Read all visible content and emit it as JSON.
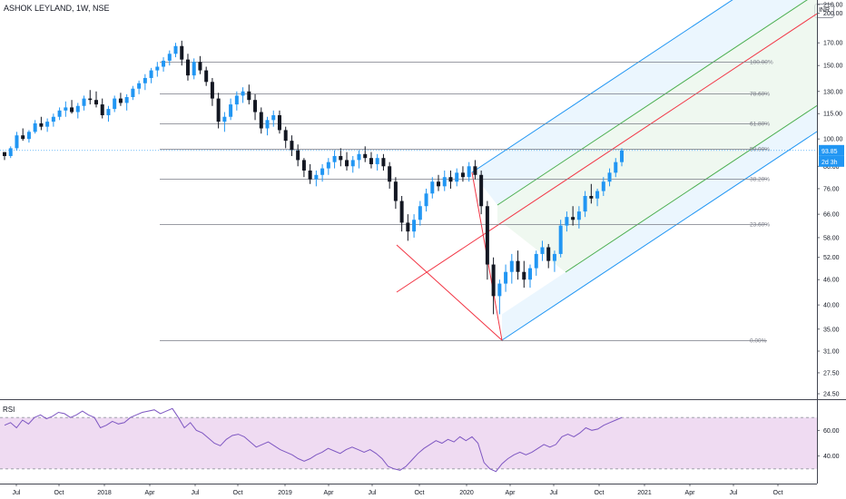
{
  "header": {
    "title": "ASHOK LEYLAND, 1W, NSE"
  },
  "currency": "INR",
  "rsi": {
    "label": "RSI",
    "levels": [
      "60.00",
      "40.00"
    ]
  },
  "price_axis": {
    "ticks": [
      "210.00",
      "200.00",
      "170.00",
      "150.00",
      "130.00",
      "115.00",
      "100.00",
      "86.00",
      "76.00",
      "66.00",
      "58.00",
      "52.00",
      "46.00",
      "40.00",
      "35.00",
      "31.00",
      "27.50",
      "24.50"
    ],
    "current_price": "93.85",
    "countdown": "2d 3h"
  },
  "time_axis": {
    "labels": [
      "Jul",
      "Oct",
      "2018",
      "Apr",
      "Jul",
      "Oct",
      "2019",
      "Apr",
      "Jul",
      "Oct",
      "2020",
      "Apr",
      "Jul",
      "Oct",
      "2021",
      "Apr",
      "Jul",
      "Oct"
    ]
  },
  "fibonacci": {
    "levels": [
      "100.00%",
      "78.60%",
      "61.80%",
      "50.00%",
      "38.20%",
      "23.60%",
      "0.00%"
    ]
  },
  "colors": {
    "up": "#2196f3",
    "down": "#131722",
    "fib_line": "#787b86",
    "pitch_upper": "#2196f3",
    "pitch_mid": "#4caf50",
    "pitch_median": "#f23645",
    "rsi_line": "#7e57c2",
    "rsi_band": "#e1bee7",
    "current_price": "#2196f3"
  },
  "chart_data": [
    {
      "type": "candlestick",
      "title": "ASHOK LEYLAND, 1W, NSE",
      "xlabel": "",
      "ylabel": "",
      "x_range": [
        "2017-06",
        "2021-12"
      ],
      "y_scale": "log",
      "ylim": [
        24.5,
        210
      ],
      "last_price": 93.85,
      "series": [
        {
          "values": [
            [
              93,
              93,
              89,
              91
            ],
            [
              91,
              96,
              90,
              95
            ],
            [
              95,
              104,
              94,
              102
            ],
            [
              102,
              106,
              99,
              100
            ],
            [
              100,
              105,
              98,
              104
            ],
            [
              104,
              111,
              103,
              109
            ],
            [
              109,
              113,
              105,
              107
            ],
            [
              107,
              112,
              104,
              110
            ],
            [
              110,
              115,
              107,
              113
            ],
            [
              113,
              119,
              111,
              117
            ],
            [
              117,
              123,
              113,
              119
            ],
            [
              119,
              124,
              115,
              116
            ],
            [
              116,
              122,
              112,
              120
            ],
            [
              120,
              127,
              117,
              125
            ],
            [
              125,
              131,
              121,
              124
            ],
            [
              124,
              130,
              119,
              121
            ],
            [
              121,
              125,
              112,
              114
            ],
            [
              114,
              120,
              110,
              118
            ],
            [
              118,
              127,
              116,
              125
            ],
            [
              125,
              129,
              120,
              122
            ],
            [
              122,
              128,
              117,
              126
            ],
            [
              126,
              134,
              124,
              132
            ],
            [
              132,
              138,
              128,
              136
            ],
            [
              136,
              143,
              131,
              140
            ],
            [
              140,
              148,
              136,
              146
            ],
            [
              146,
              153,
              141,
              149
            ],
            [
              149,
              157,
              145,
              154
            ],
            [
              154,
              163,
              150,
              160
            ],
            [
              160,
              170,
              157,
              167
            ],
            [
              167,
              172,
              150,
              155
            ],
            [
              155,
              160,
              138,
              142
            ],
            [
              142,
              156,
              139,
              153
            ],
            [
              153,
              158,
              143,
              146
            ],
            [
              146,
              149,
              134,
              137
            ],
            [
              137,
              140,
              120,
              125
            ],
            [
              125,
              129,
              106,
              110
            ],
            [
              110,
              116,
              104,
              113
            ],
            [
              113,
              125,
              111,
              121
            ],
            [
              121,
              130,
              117,
              127
            ],
            [
              127,
              133,
              122,
              130
            ],
            [
              130,
              135,
              121,
              124
            ],
            [
              124,
              128,
              111,
              116
            ],
            [
              116,
              119,
              103,
              106
            ],
            [
              106,
              113,
              102,
              111
            ],
            [
              111,
              117,
              107,
              114
            ],
            [
              114,
              117,
              103,
              105
            ],
            [
              105,
              107,
              95,
              99
            ],
            [
              99,
              102,
              91,
              94
            ],
            [
              94,
              97,
              86,
              89
            ],
            [
              89,
              90,
              81,
              84
            ],
            [
              84,
              87,
              78,
              80
            ],
            [
              80,
              84,
              77,
              82
            ],
            [
              82,
              87,
              79,
              85
            ],
            [
              85,
              90,
              82,
              88
            ],
            [
              88,
              94,
              85,
              91
            ],
            [
              91,
              95,
              86,
              89
            ],
            [
              89,
              93,
              84,
              86
            ],
            [
              86,
              91,
              83,
              89
            ],
            [
              89,
              94,
              85,
              92
            ],
            [
              92,
              96,
              88,
              90
            ],
            [
              90,
              93,
              85,
              87
            ],
            [
              87,
              92,
              84,
              90
            ],
            [
              90,
              92,
              84,
              86
            ],
            [
              86,
              88,
              76,
              79
            ],
            [
              79,
              81,
              68,
              71
            ],
            [
              71,
              73,
              60,
              63
            ],
            [
              63,
              66,
              57,
              60
            ],
            [
              60,
              66,
              58,
              64
            ],
            [
              64,
              71,
              62,
              69
            ],
            [
              69,
              76,
              67,
              74
            ],
            [
              74,
              81,
              72,
              79
            ],
            [
              79,
              82,
              75,
              77
            ],
            [
              77,
              84,
              75,
              81
            ],
            [
              81,
              84,
              76,
              79
            ],
            [
              79,
              85,
              77,
              83
            ],
            [
              83,
              86,
              79,
              81
            ],
            [
              81,
              88,
              79,
              86
            ],
            [
              86,
              89,
              80,
              82
            ],
            [
              82,
              84,
              66,
              69
            ],
            [
              69,
              71,
              46,
              50
            ],
            [
              50,
              52,
              38,
              42
            ],
            [
              42,
              46,
              38,
              45
            ],
            [
              45,
              50,
              43,
              48
            ],
            [
              48,
              53,
              45,
              51
            ],
            [
              51,
              54,
              46,
              48
            ],
            [
              48,
              51,
              44,
              46
            ],
            [
              46,
              50,
              44,
              49
            ],
            [
              49,
              54,
              47,
              53
            ],
            [
              53,
              57,
              51,
              55
            ],
            [
              55,
              56,
              49,
              51
            ],
            [
              51,
              54,
              48,
              53
            ],
            [
              53,
              64,
              52,
              62
            ],
            [
              62,
              67,
              60,
              65
            ],
            [
              65,
              69,
              62,
              64
            ],
            [
              64,
              69,
              61,
              67
            ],
            [
              67,
              75,
              65,
              73
            ],
            [
              73,
              78,
              70,
              72
            ],
            [
              72,
              76,
              69,
              75
            ],
            [
              75,
              81,
              73,
              79
            ],
            [
              79,
              85,
              77,
              83
            ],
            [
              83,
              90,
              81,
              88
            ],
            [
              88,
              95,
              86,
              93.85
            ]
          ]
        }
      ]
    },
    {
      "type": "line",
      "title": "RSI",
      "ylim": [
        20,
        80
      ],
      "series": [
        {
          "values": [
            64,
            66,
            62,
            68,
            65,
            70,
            72,
            69,
            71,
            74,
            73,
            70,
            72,
            75,
            72,
            70,
            62,
            64,
            67,
            65,
            66,
            70,
            72,
            74,
            75,
            76,
            73,
            75,
            77,
            70,
            62,
            66,
            60,
            58,
            54,
            50,
            48,
            53,
            56,
            57,
            55,
            51,
            47,
            49,
            51,
            48,
            45,
            43,
            41,
            38,
            36,
            38,
            41,
            43,
            46,
            44,
            42,
            45,
            47,
            45,
            43,
            45,
            42,
            38,
            32,
            30,
            29,
            32,
            37,
            42,
            46,
            49,
            52,
            50,
            53,
            51,
            55,
            52,
            55,
            50,
            35,
            30,
            28,
            34,
            38,
            41,
            43,
            41,
            43,
            46,
            49,
            47,
            49,
            55,
            57,
            55,
            58,
            62,
            60,
            61,
            64,
            66,
            68,
            70
          ]
        }
      ]
    }
  ]
}
